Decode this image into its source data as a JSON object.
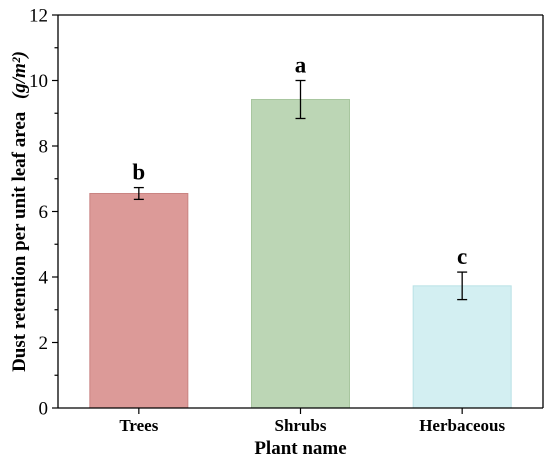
{
  "chart_data": {
    "type": "bar",
    "categories": [
      "Trees",
      "Shrubs",
      "Herbaceous"
    ],
    "values": [
      6.55,
      9.42,
      3.73
    ],
    "errors": [
      0.18,
      0.58,
      0.42
    ],
    "significance_labels": [
      "b",
      "a",
      "c"
    ],
    "bar_colors": [
      "#dc9a98",
      "#bcd6b5",
      "#d3eff2"
    ],
    "bar_edge_colors": [
      "#c98482",
      "#a8c69f",
      "#b9e1e6"
    ],
    "xlabel": "Plant name",
    "ylabel": "Dust retention per unit leaf area",
    "ylabel_unit": "(g/m²)",
    "ylim": [
      0,
      12
    ],
    "yticks": [
      0,
      2,
      4,
      6,
      8,
      10,
      12
    ],
    "ytick_labels": [
      "0",
      "2",
      "4",
      "6",
      "8",
      "10",
      "12"
    ],
    "grid": false,
    "legend": false
  }
}
